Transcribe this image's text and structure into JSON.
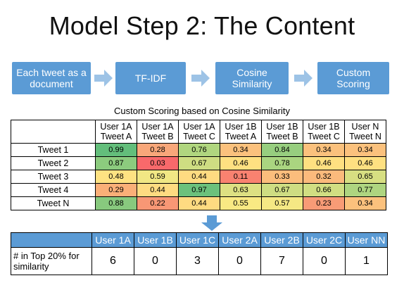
{
  "title": "Model Step 2: The Content",
  "flow": {
    "steps": [
      "Each tweet as a document",
      "TF-IDF",
      "Cosine Similarity",
      "Custom Scoring"
    ]
  },
  "subtitle": "Custom Scoring based on Cosine Similarity",
  "score_table": {
    "columns": [
      {
        "line1": "User 1A",
        "line2": "Tweet A"
      },
      {
        "line1": "User 1A",
        "line2": "Tweet B"
      },
      {
        "line1": "User 1A",
        "line2": "Tweet C"
      },
      {
        "line1": "User 1B",
        "line2": "Tweet A"
      },
      {
        "line1": "User 1B",
        "line2": "Tweet B"
      },
      {
        "line1": "User 1B",
        "line2": "Tweet C"
      },
      {
        "line1": "User N",
        "line2": "Tweet N"
      }
    ],
    "rows": [
      {
        "label": "Tweet 1",
        "values": [
          "0.99",
          "0.28",
          "0.76",
          "0.34",
          "0.84",
          "0.34",
          "0.34"
        ],
        "colors": [
          "#63be7b",
          "#f8a77a",
          "#b0d67f",
          "#fbc17d",
          "#97ce7f",
          "#fbc17d",
          "#fbc17d"
        ]
      },
      {
        "label": "Tweet 2",
        "values": [
          "0.87",
          "0.03",
          "0.67",
          "0.46",
          "0.78",
          "0.46",
          "0.46"
        ],
        "colors": [
          "#8ccb7e",
          "#f8696b",
          "#cedd82",
          "#fee081",
          "#aad580",
          "#fee081",
          "#fee081"
        ]
      },
      {
        "label": "Tweet 3",
        "values": [
          "0.48",
          "0.59",
          "0.44",
          "0.11",
          "0.33",
          "0.32",
          "0.65"
        ],
        "colors": [
          "#fee282",
          "#f1e784",
          "#fedb81",
          "#f98270",
          "#fbbd7c",
          "#fbba7c",
          "#d7df82"
        ]
      },
      {
        "label": "Tweet 4",
        "values": [
          "0.29",
          "0.44",
          "0.97",
          "0.63",
          "0.67",
          "0.66",
          "0.77"
        ],
        "colors": [
          "#faaf78",
          "#fedb81",
          "#6bc17c",
          "#dde082",
          "#cedd82",
          "#d1de82",
          "#aed580"
        ]
      },
      {
        "label": "Tweet N",
        "values": [
          "0.88",
          "0.22",
          "0.44",
          "0.55",
          "0.57",
          "0.23",
          "0.34"
        ],
        "colors": [
          "#88c97e",
          "#f89775",
          "#fedb81",
          "#f9e983",
          "#f5e884",
          "#f89b76",
          "#fbc17d"
        ]
      }
    ]
  },
  "count_table": {
    "columns": [
      "User 1A",
      "User 1B",
      "User 1C",
      "User 2A",
      "User 2B",
      "User 2C",
      "User NN"
    ],
    "row_label": "# in Top 20% for similarity",
    "values": [
      "6",
      "0",
      "3",
      "0",
      "7",
      "0",
      "1"
    ]
  },
  "colors": {
    "accent_blue": "#5b9bd5",
    "arrow_blue": "#9dc3e6"
  }
}
